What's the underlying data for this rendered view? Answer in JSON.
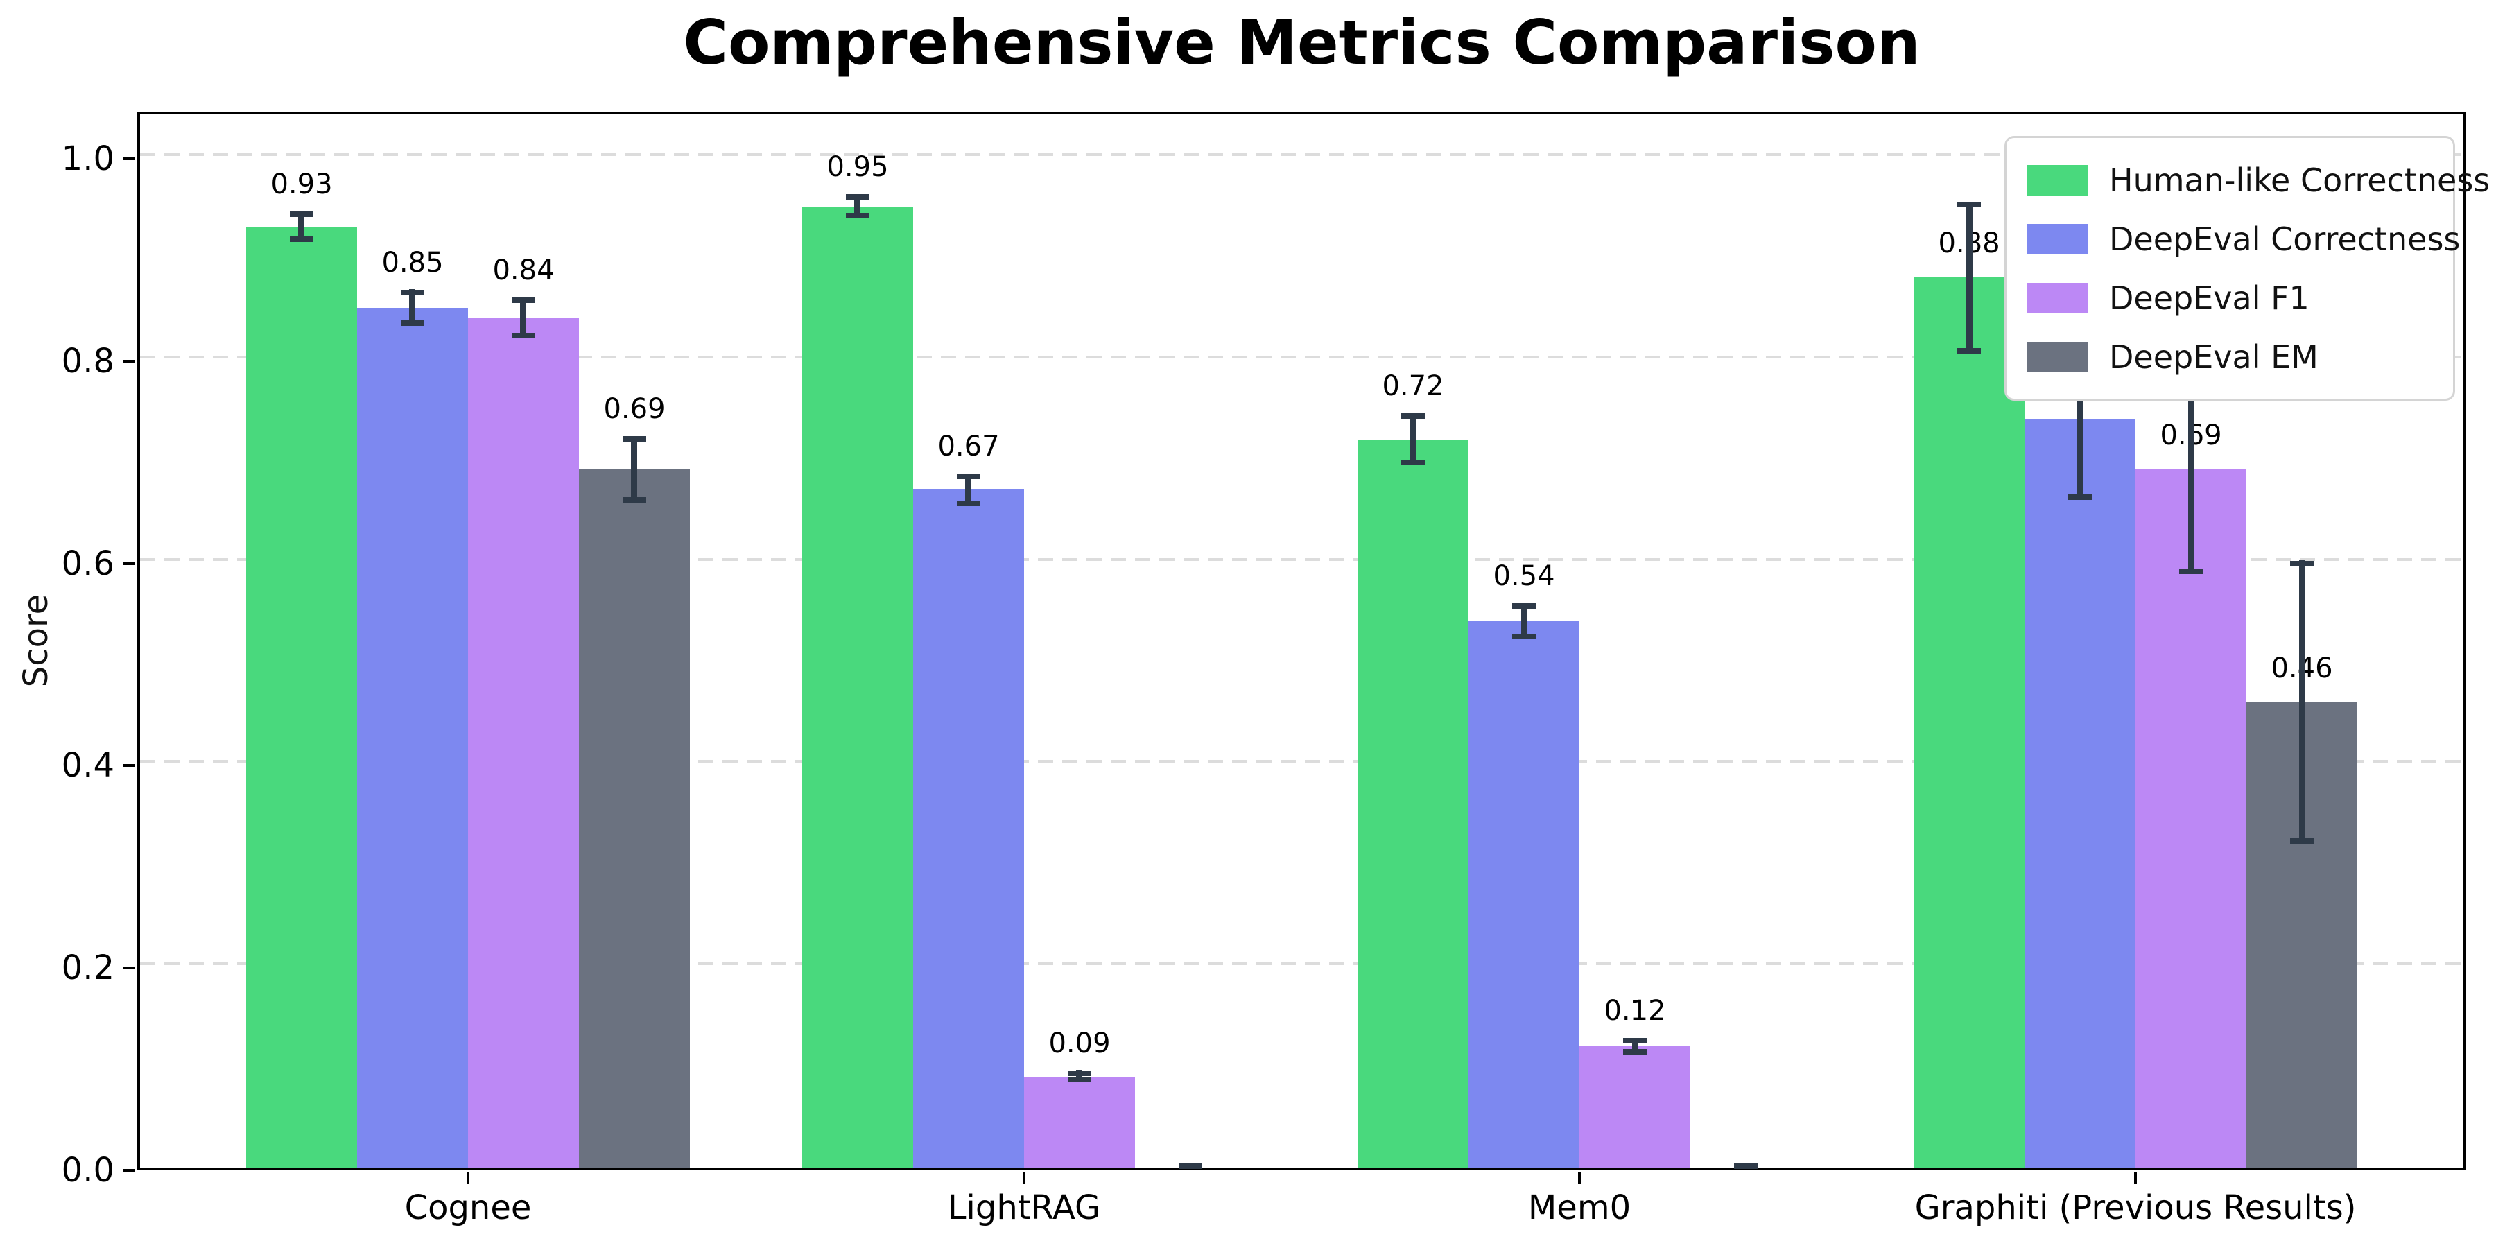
{
  "chart_data": {
    "type": "bar",
    "title": "Comprehensive Metrics Comparison",
    "xlabel": "",
    "ylabel": "Score",
    "categories": [
      "Cognee",
      "LightRAG",
      "Mem0",
      "Graphiti (Previous Results)"
    ],
    "series": [
      {
        "name": "Human-like Correctness",
        "color": "#49d97d",
        "values": [
          0.93,
          0.95,
          0.72,
          0.88
        ],
        "errors": [
          0.015,
          0.012,
          0.026,
          0.075
        ],
        "labels": [
          "0.93",
          "0.95",
          "0.72",
          "0.88"
        ]
      },
      {
        "name": "DeepEval Correctness",
        "color": "#7d88f0",
        "values": [
          0.85,
          0.67,
          0.54,
          0.74
        ],
        "errors": [
          0.018,
          0.016,
          0.018,
          0.08
        ],
        "labels": [
          "0.85",
          "0.67",
          "0.54",
          "0.74"
        ]
      },
      {
        "name": "DeepEval F1",
        "color": "#bc88f5",
        "values": [
          0.84,
          0.09,
          0.12,
          0.69
        ],
        "errors": [
          0.02,
          0.006,
          0.008,
          0.103
        ],
        "labels": [
          "0.84",
          "0.09",
          "0.12",
          "0.69"
        ]
      },
      {
        "name": "DeepEval EM",
        "color": "#6b7280",
        "values": [
          0.69,
          0.0,
          0.0,
          0.46
        ],
        "errors": [
          0.033,
          0.004,
          0.004,
          0.14
        ],
        "labels": [
          "0.69",
          "",
          "",
          "0.46"
        ]
      }
    ],
    "yticks": [
      0.0,
      0.2,
      0.4,
      0.6,
      0.8,
      1.0
    ],
    "ytick_labels": [
      "0.0",
      "0.2",
      "0.4",
      "0.6",
      "0.8",
      "1.0"
    ],
    "ylim": [
      0,
      1.047
    ],
    "grid": "horizontal dashed",
    "legend_position": "upper right",
    "style": {
      "grid_color": "#dcdcdc",
      "error_color": "#2e3a48",
      "spine_color": "#000000",
      "background": "#ffffff",
      "text_color": "#111111"
    }
  }
}
